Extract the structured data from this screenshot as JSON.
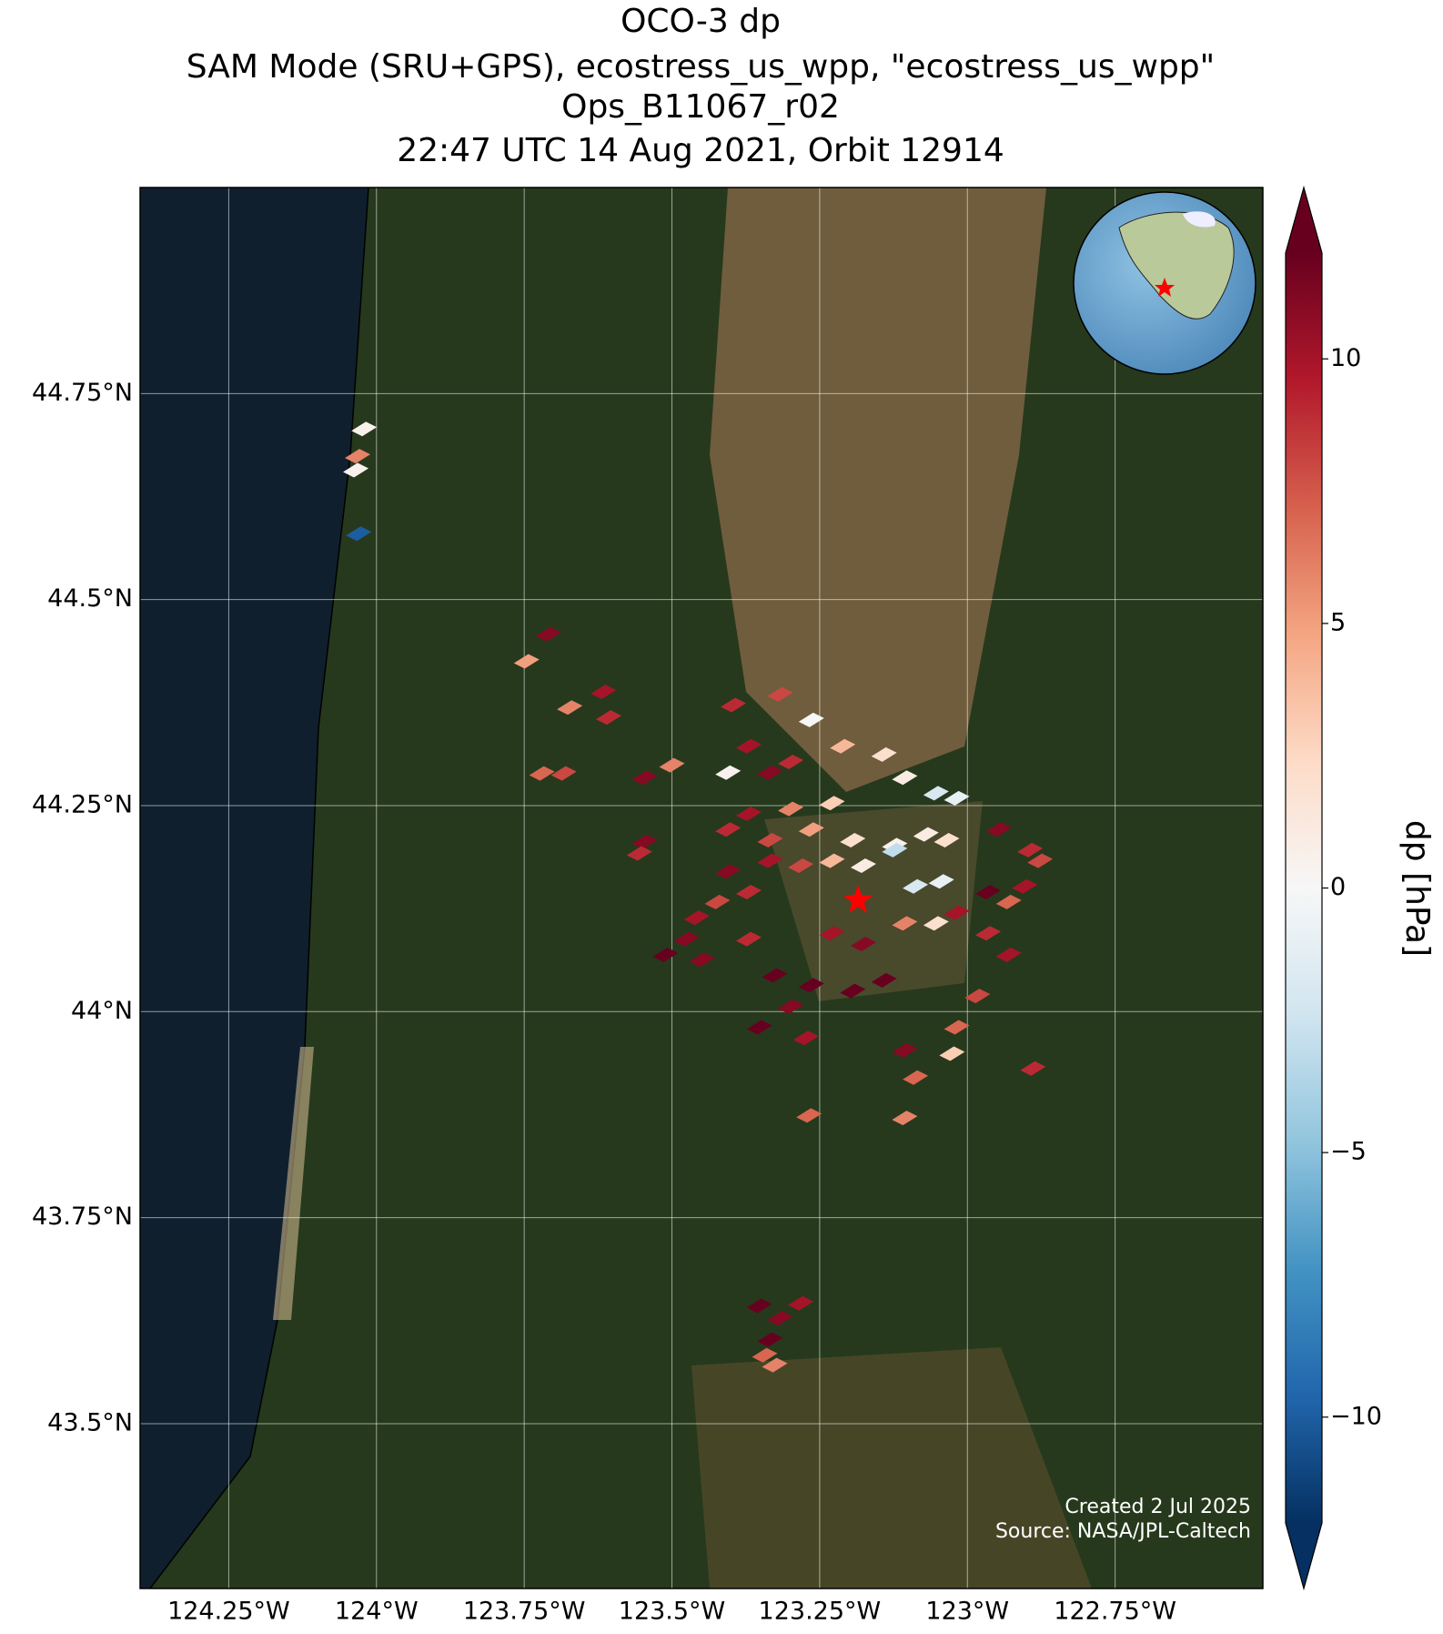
{
  "chart_data": {
    "type": "map",
    "title": [
      "OCO-3 dp",
      "SAM Mode (SRU+GPS), ecostress_us_wpp, \"ecostress_us_wpp\"",
      "Ops_B11067_r02",
      "22:47 UTC 14 Aug 2021, Orbit 12914"
    ],
    "xlim": [
      -124.4,
      -122.5
    ],
    "ylim": [
      43.3,
      45.0
    ],
    "xticks": [
      {
        "value": -124.25,
        "label": "124.25°W"
      },
      {
        "value": -124,
        "label": "124°W"
      },
      {
        "value": -123.75,
        "label": "123.75°W"
      },
      {
        "value": -123.5,
        "label": "123.5°W"
      },
      {
        "value": -123.25,
        "label": "123.25°W"
      },
      {
        "value": -123,
        "label": "123°W"
      },
      {
        "value": -122.75,
        "label": "122.75°W"
      }
    ],
    "yticks": [
      {
        "value": 43.5,
        "label": "43.5°N"
      },
      {
        "value": 43.75,
        "label": "43.75°N"
      },
      {
        "value": 44,
        "label": "44°N"
      },
      {
        "value": 44.25,
        "label": "44.25°N"
      },
      {
        "value": 44.5,
        "label": "44.5°N"
      },
      {
        "value": 44.75,
        "label": "44.75°N"
      }
    ],
    "grid": true,
    "colorbar": {
      "label": "dp [hPa]",
      "clim": [
        -12,
        12
      ],
      "ticks": [
        {
          "value": -10,
          "label": "−10"
        },
        {
          "value": -5,
          "label": "−5"
        },
        0,
        5,
        10
      ],
      "colormap": [
        "#053061",
        "#2166ac",
        "#4393c3",
        "#92c5de",
        "#d1e5f0",
        "#f7f7f7",
        "#fddbc7",
        "#f4a582",
        "#d6604d",
        "#b2182b",
        "#67001f"
      ]
    },
    "target": {
      "lon": -123.185,
      "lat": 44.135,
      "color": "#ff0000"
    },
    "soundings": {
      "lon": [
        -124.021,
        -124.032,
        -124.035,
        -124.03,
        -123.709,
        -123.746,
        -123.616,
        -123.673,
        -123.607,
        -123.72,
        -123.683,
        -123.546,
        -123.5,
        -123.546,
        -123.555,
        -123.396,
        -123.317,
        -123.264,
        -123.405,
        -123.37,
        -123.334,
        -123.299,
        -123.211,
        -123.141,
        -123.106,
        -123.053,
        -123.018,
        -123.229,
        -123.299,
        -123.37,
        -123.405,
        -123.334,
        -123.264,
        -123.194,
        -123.123,
        -123.07,
        -123.035,
        -123.123,
        -123.088,
        -123.044,
        -123.334,
        -123.282,
        -123.229,
        -123.176,
        -123.405,
        -123.37,
        -123.423,
        -123.458,
        -123.475,
        -123.511,
        -123.449,
        -123.37,
        -123.326,
        -123.264,
        -123.194,
        -123.141,
        -123.176,
        -123.229,
        -123.106,
        -123.053,
        -123.018,
        -122.965,
        -122.947,
        -122.894,
        -122.877,
        -122.903,
        -122.93,
        -122.965,
        -122.93,
        -122.983,
        -123.299,
        -123.352,
        -123.273,
        -123.018,
        -123.026,
        -123.106,
        -123.088,
        -122.889,
        -123.268,
        -123.106,
        -123.352,
        -123.317,
        -123.282,
        -123.334,
        -123.343,
        -123.326
      ],
      "lat": [
        44.707,
        44.674,
        44.657,
        44.58,
        44.458,
        44.425,
        44.388,
        44.369,
        44.357,
        44.289,
        44.289,
        44.284,
        44.299,
        44.206,
        44.192,
        44.372,
        44.385,
        44.354,
        44.29,
        44.322,
        44.29,
        44.303,
        44.322,
        44.312,
        44.284,
        44.265,
        44.259,
        44.253,
        44.246,
        44.24,
        44.221,
        44.208,
        44.221,
        44.208,
        44.202,
        44.215,
        44.208,
        44.196,
        44.152,
        44.158,
        44.183,
        44.177,
        44.183,
        44.177,
        44.17,
        44.145,
        44.133,
        44.114,
        44.088,
        44.069,
        44.063,
        44.088,
        44.044,
        44.032,
        44.025,
        44.038,
        44.082,
        44.095,
        44.107,
        44.107,
        44.12,
        44.145,
        44.221,
        44.196,
        44.183,
        44.152,
        44.133,
        44.095,
        44.069,
        44.019,
        44.006,
        43.981,
        43.968,
        43.981,
        43.949,
        43.953,
        43.92,
        43.931,
        43.874,
        43.871,
        43.643,
        43.628,
        43.646,
        43.602,
        43.583,
        43.571
      ],
      "dp": [
        0.5,
        6,
        0.5,
        -10,
        11,
        5,
        10,
        6,
        9,
        7,
        8,
        11,
        6,
        11,
        9,
        9,
        8,
        0,
        0.5,
        10,
        11,
        9,
        4,
        2,
        1,
        -2,
        -1,
        3,
        6,
        10,
        9,
        8,
        5,
        2,
        0.5,
        1,
        2,
        -3,
        -2,
        -1,
        10,
        8,
        4,
        1,
        11,
        9,
        8,
        10,
        11,
        12,
        11,
        9,
        12,
        12,
        12,
        12,
        11,
        10,
        6,
        2,
        10,
        12,
        11,
        9,
        8,
        10,
        7,
        9,
        10,
        8,
        11,
        12,
        10,
        7,
        3,
        11,
        7,
        9,
        7,
        6,
        12,
        11,
        10,
        12,
        7,
        6
      ]
    },
    "annotations": [
      "Created 2 Jul 2025",
      "Source: NASA/JPL-Caltech"
    ]
  }
}
